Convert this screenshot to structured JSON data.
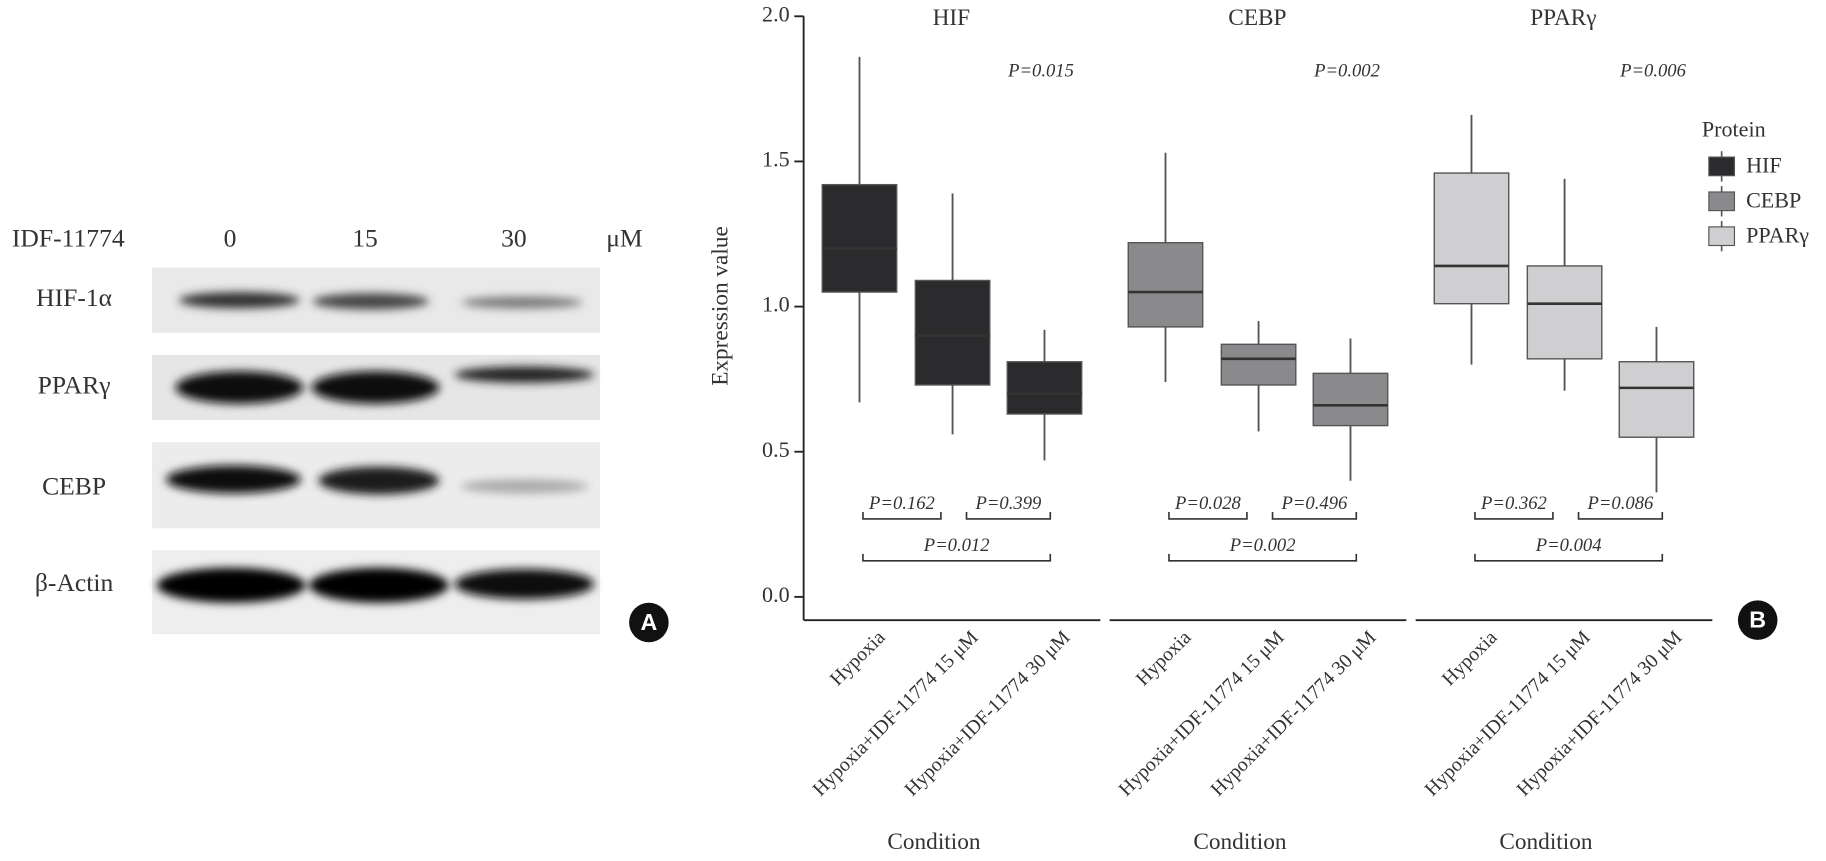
{
  "blot": {
    "treatment_label": "IDF-11774",
    "doses": [
      "0",
      "15",
      "30"
    ],
    "unit": "μM",
    "proteins": [
      "HIF-1α",
      "PPARγ",
      "CEBP",
      "β-Actin"
    ],
    "panel_label": "A"
  },
  "chart_data": {
    "type": "box",
    "ylabel": "Expression value",
    "xlabel": "Condition",
    "ylim": [
      0,
      2
    ],
    "yticks": [
      {
        "value": 0,
        "label": "0.0"
      },
      {
        "value": 0.5,
        "label": "0.5"
      },
      {
        "value": 1,
        "label": "1.0"
      },
      {
        "value": 1.5,
        "label": "1.5"
      },
      {
        "value": 2,
        "label": "2.0"
      }
    ],
    "categories": [
      "Hypoxia",
      "Hypoxia+IDF-11774 15 μM",
      "Hypoxia+IDF-11774 30 μM"
    ],
    "legend_title": "Protein",
    "panel_label": "B",
    "panels": [
      {
        "title": "HIF",
        "color": "#2b2b2d",
        "p_overall": "P=0.015",
        "p_values": [
          "P=0.162",
          "P=0.399",
          "P=0.012"
        ],
        "boxes": [
          {
            "whislo": 0.67,
            "q1": 1.05,
            "med": 1.2,
            "q3": 1.42,
            "whishi": 1.86
          },
          {
            "whislo": 0.56,
            "q1": 0.73,
            "med": 0.9,
            "q3": 1.09,
            "whishi": 1.39
          },
          {
            "whislo": 0.47,
            "q1": 0.63,
            "med": 0.7,
            "q3": 0.81,
            "whishi": 0.92
          }
        ]
      },
      {
        "title": "CEBP",
        "color": "#8a8a8c",
        "p_overall": "P=0.002",
        "p_values": [
          "P=0.028",
          "P=0.496",
          "P=0.002"
        ],
        "boxes": [
          {
            "whislo": 0.74,
            "q1": 0.93,
            "med": 1.05,
            "q3": 1.22,
            "whishi": 1.53
          },
          {
            "whislo": 0.57,
            "q1": 0.73,
            "med": 0.82,
            "q3": 0.87,
            "whishi": 0.95
          },
          {
            "whislo": 0.4,
            "q1": 0.59,
            "med": 0.66,
            "q3": 0.77,
            "whishi": 0.89
          }
        ]
      },
      {
        "title": "PPARγ",
        "color": "#cfcfd1",
        "p_overall": "P=0.006",
        "p_values": [
          "P=0.362",
          "P=0.086",
          "P=0.004"
        ],
        "boxes": [
          {
            "whislo": 0.8,
            "q1": 1.01,
            "med": 1.14,
            "q3": 1.46,
            "whishi": 1.66
          },
          {
            "whislo": 0.71,
            "q1": 0.82,
            "med": 1.01,
            "q3": 1.14,
            "whishi": 1.44
          },
          {
            "whislo": 0.36,
            "q1": 0.55,
            "med": 0.72,
            "q3": 0.81,
            "whishi": 0.93
          }
        ]
      }
    ]
  }
}
